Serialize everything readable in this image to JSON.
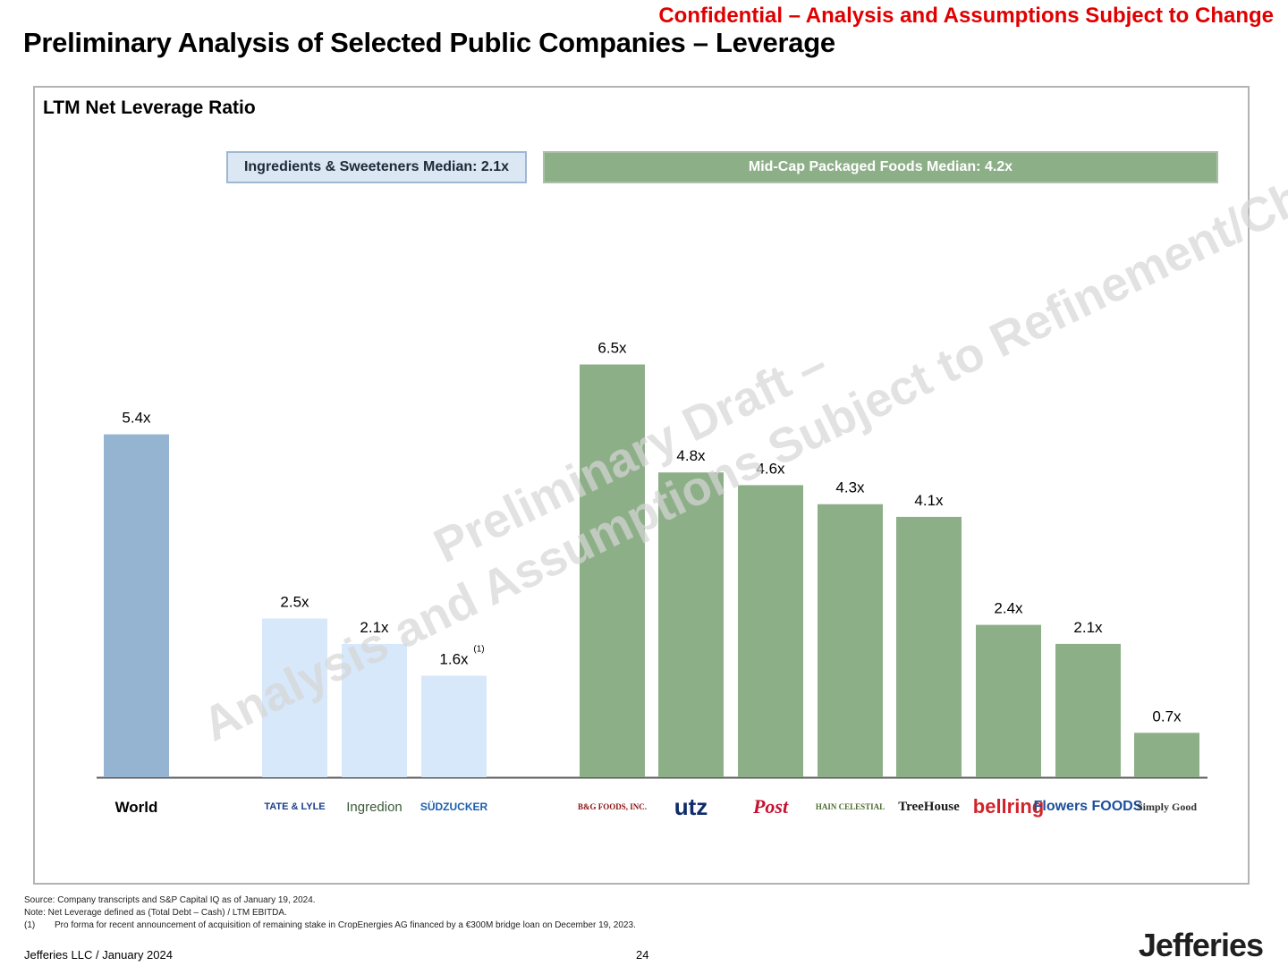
{
  "header": {
    "confidential": "Confidential – Analysis and Assumptions Subject to Change",
    "title": "Preliminary Analysis of Selected Public Companies – Leverage"
  },
  "panel": {
    "title": "LTM Net Leverage Ratio",
    "median_ingredients": "Ingredients & Sweeteners Median: 2.1x",
    "median_midcap": "Mid-Cap Packaged Foods Median: 4.2x"
  },
  "watermark": {
    "line1": "Preliminary Draft –",
    "line2": "Analysis and Assumptions Subject to Refinement/Change"
  },
  "colors": {
    "world": "#95b4d2",
    "ingredients": "#d7e8fa",
    "midcap": "#8daf88",
    "axis": "#5a5a5a"
  },
  "chart_data": {
    "type": "bar",
    "title": "LTM Net Leverage Ratio",
    "xlabel": "",
    "ylabel": "",
    "ylim": [
      0,
      6.5
    ],
    "categories": [
      "World",
      "Tate & Lyle",
      "Ingredion",
      "Südzucker",
      "B&G Foods",
      "Utz",
      "Post",
      "Hain Celestial",
      "TreeHouse",
      "BellRing",
      "Flowers Foods",
      "Simply Good Foods"
    ],
    "values": [
      5.4,
      2.5,
      2.1,
      1.6,
      6.5,
      4.8,
      4.6,
      4.3,
      4.1,
      2.4,
      2.1,
      0.7
    ],
    "data_labels": [
      "5.4x",
      "2.5x",
      "2.1x",
      "1.6x",
      "6.5x",
      "4.8x",
      "4.6x",
      "4.3x",
      "4.1x",
      "2.4x",
      "2.1x",
      "0.7x"
    ],
    "label_footnotes": [
      "",
      "",
      "",
      "(1)",
      "",
      "",
      "",
      "",
      "",
      "",
      "",
      ""
    ],
    "groups": [
      "world",
      "ingredients",
      "ingredients",
      "ingredients",
      "midcap",
      "midcap",
      "midcap",
      "midcap",
      "midcap",
      "midcap",
      "midcap",
      "midcap"
    ],
    "medians": [
      {
        "group": "Ingredients & Sweeteners",
        "value": 2.1
      },
      {
        "group": "Mid-Cap Packaged Foods",
        "value": 4.2
      }
    ]
  },
  "company_logos": [
    {
      "name": "World",
      "text": "World",
      "style": "text-bold",
      "color": "#000000"
    },
    {
      "name": "tate-and-lyle",
      "text": "TATE & LYLE",
      "style": "wordmark",
      "color": "#1b3f8b"
    },
    {
      "name": "ingredion",
      "text": "Ingredion",
      "style": "wordmark",
      "color": "#3a5a3a"
    },
    {
      "name": "sudzucker",
      "text": "SÜDZUCKER",
      "style": "wordmark",
      "color": "#1b5fae"
    },
    {
      "name": "bg-foods",
      "text": "B&G FOODS, INC.",
      "style": "wordmark",
      "color": "#8b1010"
    },
    {
      "name": "utz",
      "text": "utz",
      "style": "wordmark",
      "color": "#102a6b"
    },
    {
      "name": "post",
      "text": "Post",
      "style": "wordmark",
      "color": "#c4122f"
    },
    {
      "name": "hain-celestial",
      "text": "HAIN CELESTIAL",
      "style": "wordmark",
      "color": "#4a6a2a"
    },
    {
      "name": "treehouse",
      "text": "TreeHouse",
      "style": "wordmark",
      "color": "#1a1a1a"
    },
    {
      "name": "bellring",
      "text": "bellring",
      "style": "wordmark",
      "color": "#d2232a"
    },
    {
      "name": "flowers-foods",
      "text": "Flowers FOODS",
      "style": "wordmark",
      "color": "#1b4f9c"
    },
    {
      "name": "simply-good",
      "text": "Simply Good",
      "style": "wordmark",
      "color": "#333333"
    }
  ],
  "footnotes": {
    "source": "Source: Company transcripts and S&P Capital IQ as of January 19, 2024.",
    "note": "Note: Net Leverage defined as (Total Debt – Cash) / LTM EBITDA.",
    "fn1_num": "(1)",
    "fn1_text": "Pro forma for recent announcement of acquisition of remaining stake in CropEnergies AG financed by a €300M bridge loan on December 19, 2023."
  },
  "footer": {
    "left": "Jefferies LLC / January 2024",
    "page": "24",
    "brand": "Jefferies"
  }
}
